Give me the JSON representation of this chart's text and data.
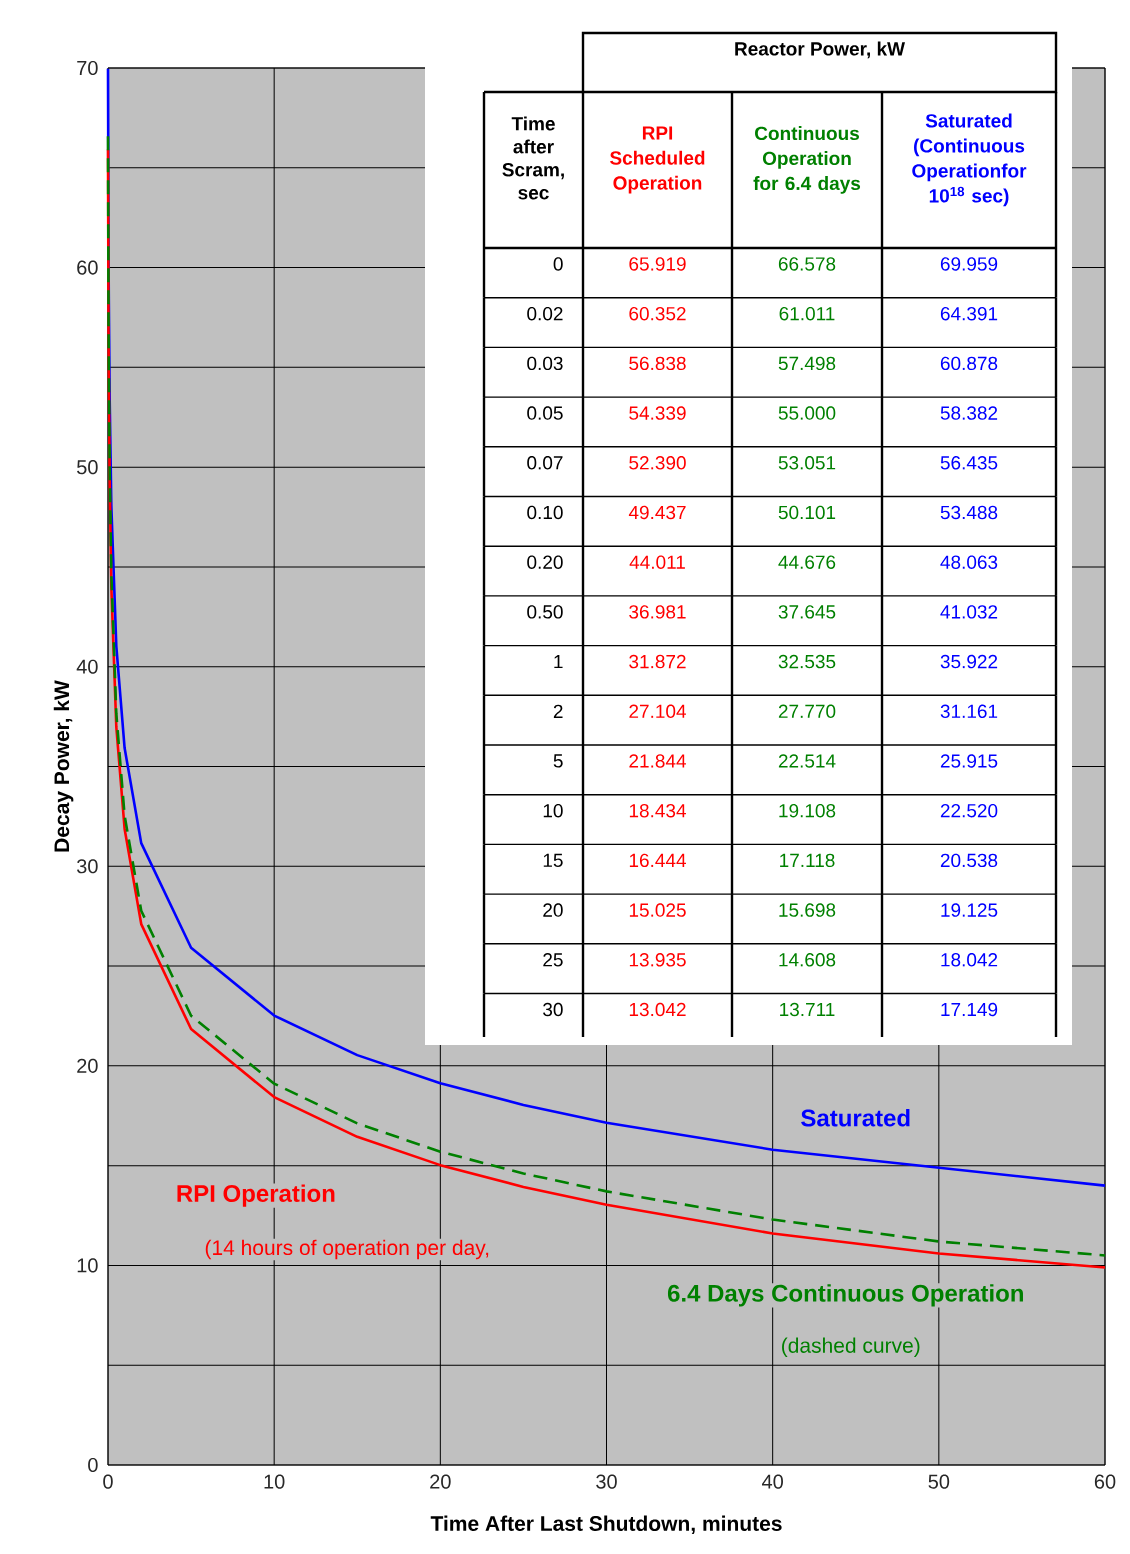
{
  "chart_data": {
    "type": "line",
    "xlabel": "Time After Last Shutdown, minutes",
    "ylabel": "Decay Power, kW",
    "xlim": [
      0,
      60
    ],
    "xticks": [
      0,
      10,
      20,
      30,
      40,
      50,
      60
    ],
    "ylim": [
      0,
      70
    ],
    "yticks": [
      0,
      {
        "value": 5,
        "label": null
      },
      10,
      {
        "value": 15,
        "label": null
      },
      20,
      {
        "value": 25,
        "label": null
      },
      30,
      {
        "value": 35,
        "label": null
      },
      40,
      {
        "value": 45,
        "label": null
      },
      50,
      {
        "value": 55,
        "label": null
      },
      60,
      {
        "value": 65,
        "label": null
      },
      70
    ],
    "grid": true,
    "marker": "none",
    "x": [
      0,
      0.02,
      0.03,
      0.05,
      0.07,
      0.1,
      0.2,
      0.5,
      1,
      2,
      5,
      10,
      15,
      20,
      25,
      30,
      40,
      50,
      60
    ],
    "series": [
      {
        "name": "Saturated",
        "color": "#0000ff",
        "line_style": "solid",
        "values": [
          69.959,
          64.391,
          60.878,
          58.382,
          56.435,
          53.488,
          48.063,
          41.032,
          35.922,
          31.161,
          25.915,
          22.52,
          20.538,
          19.125,
          18.042,
          17.149,
          15.8,
          14.9,
          14.0
        ]
      },
      {
        "name": "RPI Operation",
        "color": "#ff0000",
        "line_style": "solid",
        "values": [
          65.919,
          60.352,
          56.838,
          54.339,
          52.39,
          49.437,
          44.011,
          36.981,
          31.872,
          27.104,
          21.844,
          18.434,
          16.444,
          15.025,
          13.935,
          13.042,
          11.6,
          10.6,
          9.9
        ]
      },
      {
        "name": "6.4 Days Continuous Operation",
        "color": "#008000",
        "line_style": "dashed",
        "values": [
          66.578,
          61.011,
          57.498,
          55.0,
          53.051,
          50.101,
          44.676,
          37.645,
          32.535,
          27.77,
          22.514,
          19.108,
          17.118,
          15.698,
          14.608,
          13.711,
          12.3,
          11.2,
          10.5
        ]
      }
    ],
    "annotations": [
      "(14 hours of operation per day,",
      "(dashed curve)",
      "Reactor Power, kW",
      "Time after Scram, sec",
      "RPI Scheduled Operation",
      "Continuous Operation for 6.4 days",
      "Saturated (Continuous Operationfor 10$^{18}$ sec)",
      "0",
      "65.919",
      "66.578",
      "69.959",
      "0.02",
      "60.352",
      "61.011",
      "64.391",
      "0.03",
      "56.838",
      "57.498",
      "60.878",
      "0.05",
      "54.339",
      "55.000",
      "58.382",
      "0.07",
      "52.390",
      "53.051",
      "56.435",
      "0.10",
      "49.437",
      "50.101",
      "53.488",
      "0.20",
      "44.011",
      "44.676",
      "48.063",
      "0.50",
      "36.981",
      "37.645",
      "41.032",
      "1",
      "31.872",
      "32.535",
      "35.922",
      "2",
      "27.104",
      "27.770",
      "31.161",
      "5",
      "21.844",
      "22.514",
      "25.915",
      "10",
      "18.434",
      "19.108",
      "22.520",
      "15",
      "16.444",
      "17.118",
      "20.538",
      "20",
      "15.025",
      "15.698",
      "19.125",
      "25",
      "13.935",
      "14.608",
      "18.042",
      "30",
      "13.042",
      "13.711",
      "17.149"
    ]
  }
}
